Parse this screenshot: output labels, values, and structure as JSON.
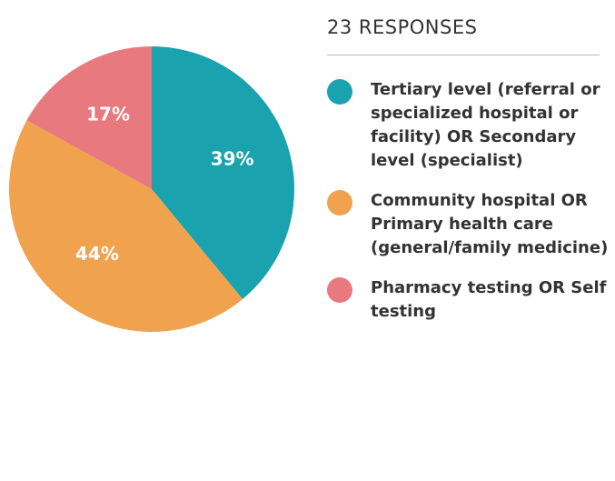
{
  "chart_data": {
    "type": "pie",
    "title": "23 RESPONSES",
    "categories": [
      "Tertiary level (referral or specialized hospital or facility) OR Secondary level (specialist)",
      "Community hospital OR Primary health care (general/family medicine)",
      "Pharmacy testing OR Self testing"
    ],
    "values": [
      39,
      44,
      17
    ],
    "value_labels": [
      "39%",
      "44%",
      "17%"
    ],
    "colors": [
      "#1aa3ae",
      "#f0a24f",
      "#e8797f"
    ]
  }
}
